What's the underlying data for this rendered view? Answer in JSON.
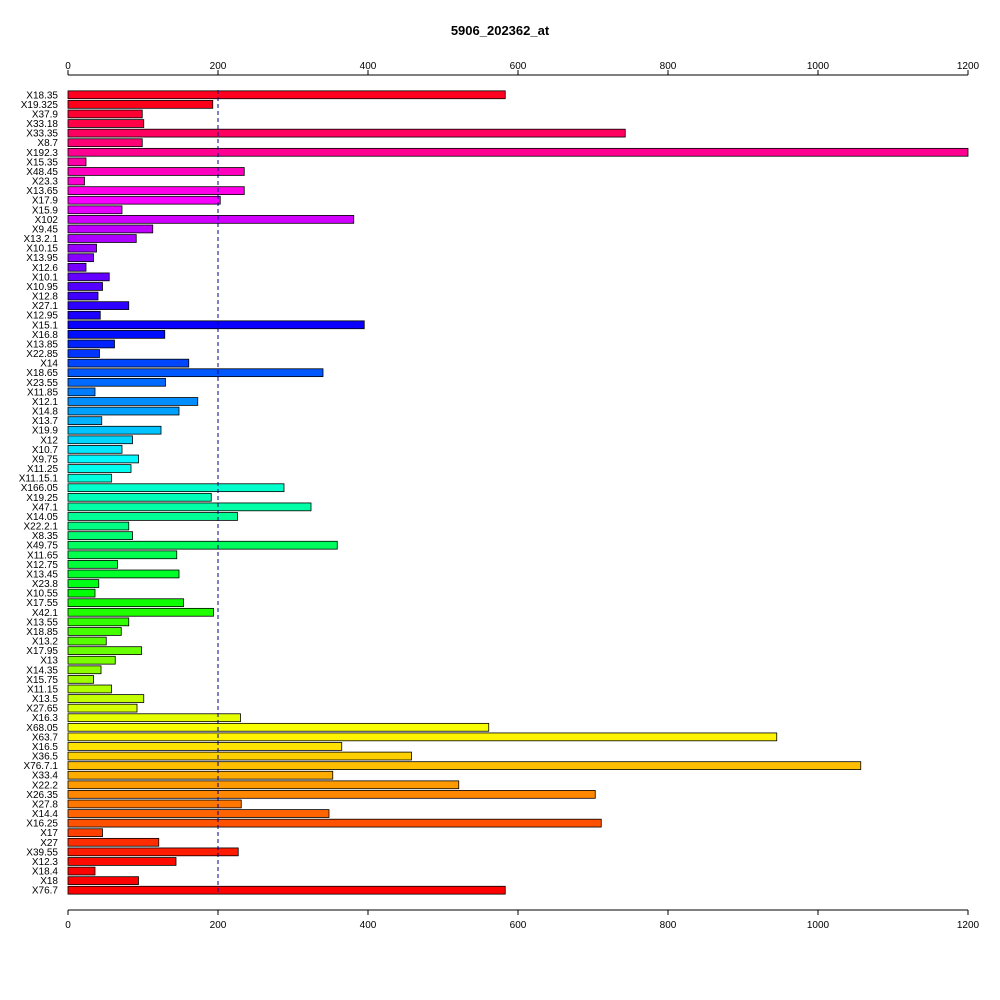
{
  "chart_data": {
    "type": "bar",
    "orientation": "horizontal",
    "title": "5906_202362_at",
    "xlim": [
      0,
      1200
    ],
    "ticks": [
      0,
      200,
      400,
      600,
      800,
      1000,
      1200
    ],
    "reference_line": {
      "value": 200,
      "style": "dashed",
      "color": "#00008B"
    },
    "categories": [
      "X18.35",
      "X19.325",
      "X37.9",
      "X33.18",
      "X33.35",
      "X8.7",
      "X192.3",
      "X15.35",
      "X48.45",
      "X23.3",
      "X13.65",
      "X17.9",
      "X15.9",
      "X102",
      "X9.45",
      "X13.2.1",
      "X10.15",
      "X13.95",
      "X12.6",
      "X10.1",
      "X10.95",
      "X12.8",
      "X27.1",
      "X12.95",
      "X15.1",
      "X16.8",
      "X13.85",
      "X22.85",
      "X14",
      "X18.65",
      "X23.55",
      "X11.85",
      "X12.1",
      "X14.8",
      "X13.7",
      "X19.9",
      "X12",
      "X10.7",
      "X9.75",
      "X11.25",
      "X11.15.1",
      "X166.05",
      "X19.25",
      "X47.1",
      "X14.05",
      "X22.2.1",
      "X8.35",
      "X49.75",
      "X11.65",
      "X12.75",
      "X13.45",
      "X23.8",
      "X10.55",
      "X17.55",
      "X42.1",
      "X13.55",
      "X18.85",
      "X13.2",
      "X17.95",
      "X13",
      "X14.35",
      "X15.75",
      "X11.15",
      "X13.5",
      "X27.65",
      "X16.3",
      "X68.05",
      "X63.7",
      "X16.5",
      "X36.5",
      "X76.7.1",
      "X33.4",
      "X22.2",
      "X26.35",
      "X27.8",
      "X14.4",
      "X16.25",
      "X17",
      "X27",
      "X39.55",
      "X12.3",
      "X18.4",
      "X18",
      "X76.7"
    ],
    "values": [
      583,
      193,
      99,
      101,
      743,
      99,
      1200,
      24,
      235,
      22,
      235,
      203,
      72,
      381,
      113,
      91,
      38,
      34,
      24,
      55,
      46,
      40,
      81,
      43,
      395,
      129,
      62,
      42,
      161,
      340,
      130,
      36,
      173,
      148,
      45,
      124,
      86,
      72,
      94,
      84,
      58,
      288,
      191,
      324,
      226,
      81,
      86,
      359,
      145,
      66,
      148,
      41,
      36,
      154,
      194,
      81,
      71,
      51,
      98,
      63,
      44,
      34,
      58,
      101,
      92,
      230,
      561,
      945,
      365,
      458,
      1057,
      353,
      521,
      703,
      231,
      348,
      711,
      46,
      121,
      227,
      144,
      36,
      94,
      583
    ],
    "colors": [
      "#FF0020",
      "#FF001A",
      "#FF0033",
      "#FF0046",
      "#FF0060",
      "#FF0075",
      "#FF0090",
      "#FF00A6",
      "#FF00BE",
      "#FF00D2",
      "#FF00E8",
      "#F800FF",
      "#E500FF",
      "#D200FF",
      "#C000FF",
      "#AD00FF",
      "#9A00FF",
      "#8800FF",
      "#7600FF",
      "#6400FF",
      "#5200FF",
      "#4000FF",
      "#2E00FF",
      "#1C00FF",
      "#0A00FF",
      "#0010FF",
      "#0022FF",
      "#0034FF",
      "#0046FF",
      "#0058FF",
      "#006AFF",
      "#007CFF",
      "#008EFF",
      "#00A0FF",
      "#00B2FF",
      "#00C4FF",
      "#00D6FF",
      "#00E8FF",
      "#00FAFF",
      "#00FFEE",
      "#00FFDC",
      "#00FFCA",
      "#00FFB8",
      "#00FFA6",
      "#00FF94",
      "#00FF82",
      "#00FF70",
      "#00FF5E",
      "#00FF4C",
      "#00FF3A",
      "#00FF28",
      "#00FF16",
      "#00FF04",
      "#0EFF00",
      "#20FF00",
      "#32FF00",
      "#44FF00",
      "#56FF00",
      "#68FF00",
      "#7AFF00",
      "#8CFF00",
      "#9EFF00",
      "#B0FF00",
      "#C2FF00",
      "#D4FF00",
      "#E6FF00",
      "#F8FF00",
      "#FFF400",
      "#FFE200",
      "#FFD000",
      "#FFBE00",
      "#FFAC00",
      "#FF9A00",
      "#FF8800",
      "#FF7600",
      "#FF6400",
      "#FF5200",
      "#FF4000",
      "#FF2E00",
      "#FF1C00",
      "#FF0A00",
      "#FF0000",
      "#FF0000",
      "#FF0000"
    ]
  }
}
